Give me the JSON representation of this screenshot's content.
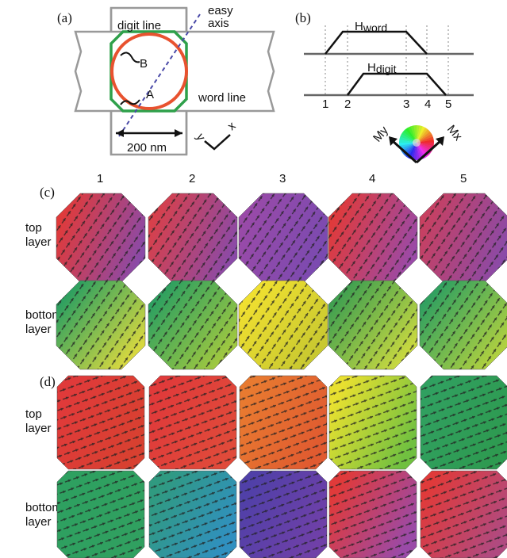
{
  "panel_a": {
    "label": "(a)",
    "digit_line": "digit line",
    "easy_axis": [
      "easy",
      "axis"
    ],
    "point_b": "B",
    "point_a": "A",
    "word_line": "word line",
    "scale": "200 nm",
    "axis_y": "y",
    "axis_x": "x"
  },
  "panel_b": {
    "label": "(b)",
    "h_word": {
      "main": "H",
      "sub": "word"
    },
    "h_digit": {
      "main": "H",
      "sub": "digit"
    },
    "time_labels": [
      "1",
      "2",
      "3",
      "4",
      "5"
    ],
    "axis_my": "My",
    "axis_mx": "Mx"
  },
  "columns": [
    "1",
    "2",
    "3",
    "4",
    "5"
  ],
  "panel_c": {
    "label": "(c)",
    "rows": [
      [
        "top",
        "layer"
      ],
      [
        "bottom",
        "layer"
      ]
    ]
  },
  "panel_d": {
    "label": "(d)",
    "rows": [
      [
        "top",
        "layer"
      ],
      [
        "bottom",
        "layer"
      ]
    ]
  }
}
